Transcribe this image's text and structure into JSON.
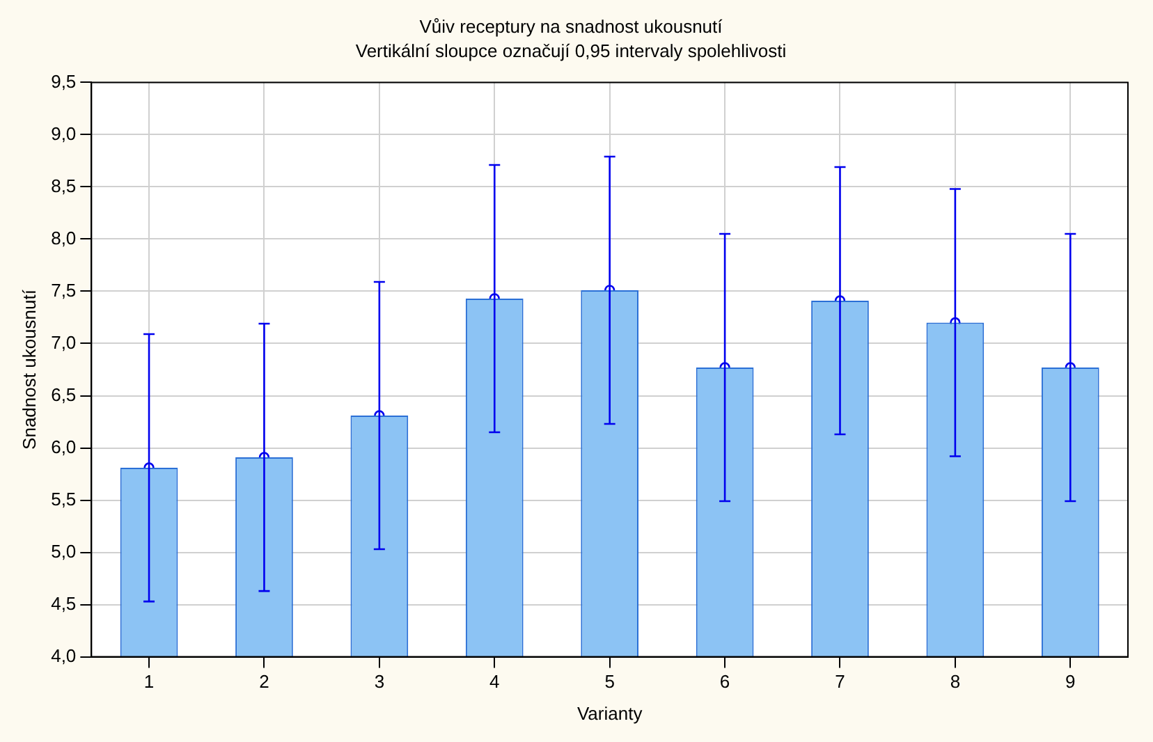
{
  "chart_data": {
    "type": "bar",
    "title": "Vůiv receptury na snadnost ukousnutí",
    "subtitle": "Vertikální sloupce označují 0,95 intervaly spolehlivosti",
    "xlabel": "Varianty",
    "ylabel": "Snadnost ukousnutí",
    "categories": [
      "1",
      "2",
      "3",
      "4",
      "5",
      "6",
      "7",
      "8",
      "9"
    ],
    "series": [
      {
        "color": "#8cc3f4",
        "values": [
          5.81,
          5.91,
          6.31,
          7.43,
          7.51,
          6.77,
          7.41,
          7.2,
          6.77
        ],
        "errors": [
          [
            4.53,
            7.09
          ],
          [
            4.63,
            7.19
          ],
          [
            5.03,
            7.59
          ],
          [
            6.15,
            8.71
          ],
          [
            6.23,
            8.79
          ],
          [
            5.49,
            8.05
          ],
          [
            6.13,
            8.69
          ],
          [
            5.92,
            8.48
          ],
          [
            5.49,
            8.05
          ]
        ]
      },
      {
        "type": "scatter",
        "color": "#0000ee",
        "x": [
          "1",
          "2",
          "3",
          "4",
          "5",
          "6",
          "7",
          "8",
          "9"
        ],
        "values": [
          5.81,
          5.91,
          6.31,
          7.43,
          7.51,
          6.77,
          7.41,
          7.2,
          6.77
        ]
      }
    ],
    "ylim": [
      4.0,
      9.5
    ],
    "yticks": [
      {
        "value": 4.0,
        "label": "4,0"
      },
      {
        "value": 4.5,
        "label": "4,5"
      },
      {
        "value": 5.0,
        "label": "5,0"
      },
      {
        "value": 5.5,
        "label": "5,5"
      },
      {
        "value": 6.0,
        "label": "6,0"
      },
      {
        "value": 6.5,
        "label": "6,5"
      },
      {
        "value": 7.0,
        "label": "7,0"
      },
      {
        "value": 7.5,
        "label": "7,5"
      },
      {
        "value": 8.0,
        "label": "8,0"
      },
      {
        "value": 8.5,
        "label": "8,5"
      },
      {
        "value": 9.0,
        "label": "9,0"
      },
      {
        "value": 9.5,
        "label": "9,5"
      }
    ],
    "grid": true,
    "legend": false,
    "marker": "circle"
  }
}
